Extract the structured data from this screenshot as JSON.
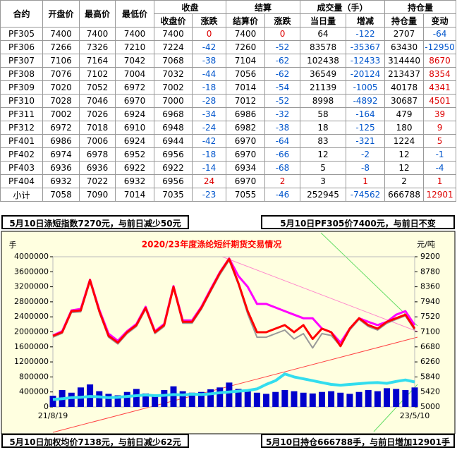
{
  "table": {
    "header_top": [
      "合约",
      "开盘价",
      "最高价",
      "最低价",
      "收盘",
      "结算",
      "成交量（手）",
      "持仓量"
    ],
    "header_sub": [
      "收盘价",
      "涨跌",
      "结算价",
      "涨跌",
      "当日量",
      "增减",
      "持仓量",
      "变动"
    ],
    "rows": [
      [
        "PF305",
        7400,
        7400,
        7400,
        7400,
        0,
        7400,
        0,
        64,
        -122,
        2707,
        -64
      ],
      [
        "PF306",
        7266,
        7326,
        7210,
        7224,
        -42,
        7260,
        -52,
        83578,
        -35367,
        63430,
        -12950
      ],
      [
        "PF307",
        7106,
        7164,
        7042,
        7068,
        -38,
        7104,
        -62,
        102438,
        -12433,
        314440,
        8670
      ],
      [
        "PF308",
        7076,
        7102,
        7004,
        7032,
        -44,
        7056,
        -62,
        36549,
        -20124,
        213437,
        8354
      ],
      [
        "PF309",
        7020,
        7052,
        6972,
        7002,
        -18,
        7014,
        -54,
        21139,
        -1005,
        40178,
        4341
      ],
      [
        "PF310",
        7028,
        7046,
        6970,
        7000,
        -28,
        7012,
        -52,
        8998,
        -4892,
        30687,
        4501
      ],
      [
        "PF311",
        7002,
        7026,
        6924,
        6968,
        -34,
        6986,
        -32,
        58,
        -164,
        479,
        39
      ],
      [
        "PF312",
        6972,
        7018,
        6910,
        6948,
        -24,
        6982,
        -38,
        18,
        -125,
        180,
        9
      ],
      [
        "PF401",
        6986,
        7006,
        6924,
        6944,
        -42,
        6970,
        -64,
        83,
        -321,
        1224,
        5
      ],
      [
        "PF402",
        6974,
        6978,
        6952,
        6956,
        -18,
        6970,
        -66,
        12,
        -2,
        12,
        -1
      ],
      [
        "PF403",
        6936,
        6936,
        6922,
        6922,
        -14,
        6934,
        -68,
        5,
        -8,
        12,
        -4
      ],
      [
        "PF404",
        6932,
        7022,
        6932,
        6956,
        24,
        6970,
        2,
        3,
        1,
        2,
        1
      ],
      [
        "小计",
        7058,
        7090,
        7014,
        7035,
        -23,
        7055,
        -46,
        252945,
        -74562,
        666788,
        12901
      ]
    ]
  },
  "notes": [
    "5月10日涤短指数7270元，与前日减少50元",
    "5月10日PF305价7400元，与前日不变",
    "5月10日加权均价7138元，与前日减少62元",
    "5月10日持仓666788手，与前日增加12901手"
  ],
  "chart_data": {
    "type": "line",
    "title": "2020/23年度涤纶短纤期货交易情况",
    "y_label": "手",
    "y2_label": "元/吨",
    "categories": [
      "21/8/19",
      null,
      null,
      null,
      null,
      null,
      null,
      null,
      null,
      null,
      null,
      null,
      null,
      null,
      null,
      null,
      null,
      null,
      null,
      null,
      null,
      null,
      null,
      null,
      null,
      null,
      null,
      null,
      null,
      null,
      null,
      null,
      null,
      null,
      null,
      null,
      null,
      null,
      null,
      "23/5/10"
    ],
    "ylim": [
      0,
      4000000
    ],
    "yticks": [
      0,
      400000,
      800000,
      1200000,
      1600000,
      2000000,
      2400000,
      2800000,
      3200000,
      3600000,
      4000000
    ],
    "y2lim": [
      5000,
      9200
    ],
    "y2ticks": [
      5000,
      5420,
      5840,
      6260,
      6680,
      7100,
      7520,
      7940,
      8360,
      8780,
      9200
    ],
    "series": [
      {
        "type": "bar",
        "color": "#0000cc",
        "values": [
          300000,
          450000,
          380000,
          520000,
          600000,
          420000,
          350000,
          310000,
          400000,
          480000,
          360000,
          330000,
          450000,
          550000,
          420000,
          380000,
          400000,
          470000,
          520000,
          650000,
          480000,
          420000,
          380000,
          350000,
          400000,
          450000,
          420000,
          380000,
          360000,
          400000,
          420000,
          380000,
          350000,
          400000,
          450000,
          420000,
          500000,
          480000,
          450000,
          520000
        ]
      },
      {
        "type": "line",
        "color": "#33ddee",
        "width": 4,
        "values": [
          200000,
          220000,
          250000,
          260000,
          280000,
          270000,
          250000,
          260000,
          280000,
          300000,
          320000,
          300000,
          310000,
          330000,
          320000,
          340000,
          330000,
          350000,
          380000,
          400000,
          420000,
          440000,
          480000,
          600000,
          700000,
          880000,
          800000,
          750000,
          700000,
          650000,
          600000,
          580000,
          600000,
          620000,
          640000,
          650000,
          630000,
          680000,
          720000,
          666788
        ]
      },
      {
        "type": "line",
        "axis": "y2",
        "color": "#999999",
        "width": 2,
        "values": [
          6950,
          7060,
          7640,
          7660,
          8500,
          7640,
          6950,
          6760,
          7050,
          7250,
          7730,
          7050,
          7250,
          8320,
          7340,
          7340,
          7730,
          8220,
          8700,
          9100,
          8420,
          7600,
          6950,
          6950,
          7050,
          7150,
          6900,
          7050,
          6650,
          7050,
          7000,
          6700,
          7150,
          7450,
          7250,
          7150,
          7340,
          7450,
          7550,
          7150
        ]
      },
      {
        "type": "line",
        "axis": "y2",
        "color": "#ff00ff",
        "width": 3,
        "values": [
          7000,
          7120,
          7700,
          7740,
          8560,
          7720,
          7050,
          6850,
          7120,
          7320,
          7800,
          7120,
          7320,
          8380,
          7420,
          7420,
          7800,
          8290,
          8770,
          9150,
          8660,
          8360,
          7880,
          7880,
          7780,
          7680,
          7580,
          7480,
          7480,
          7190,
          7090,
          6800,
          7190,
          7480,
          7380,
          7290,
          7380,
          7580,
          7680,
          7290
        ]
      },
      {
        "type": "line",
        "axis": "y2",
        "color": "#ff0000",
        "width": 3,
        "values": [
          6990,
          7090,
          7680,
          7700,
          8550,
          7680,
          6990,
          6800,
          7090,
          7290,
          7770,
          7090,
          7290,
          8360,
          7380,
          7380,
          7770,
          8260,
          8750,
          9140,
          8460,
          7680,
          7090,
          7090,
          7190,
          7290,
          7090,
          7290,
          6900,
          7190,
          7090,
          6700,
          7190,
          7480,
          7290,
          7190,
          7380,
          7480,
          7580,
          7190
        ]
      }
    ]
  }
}
